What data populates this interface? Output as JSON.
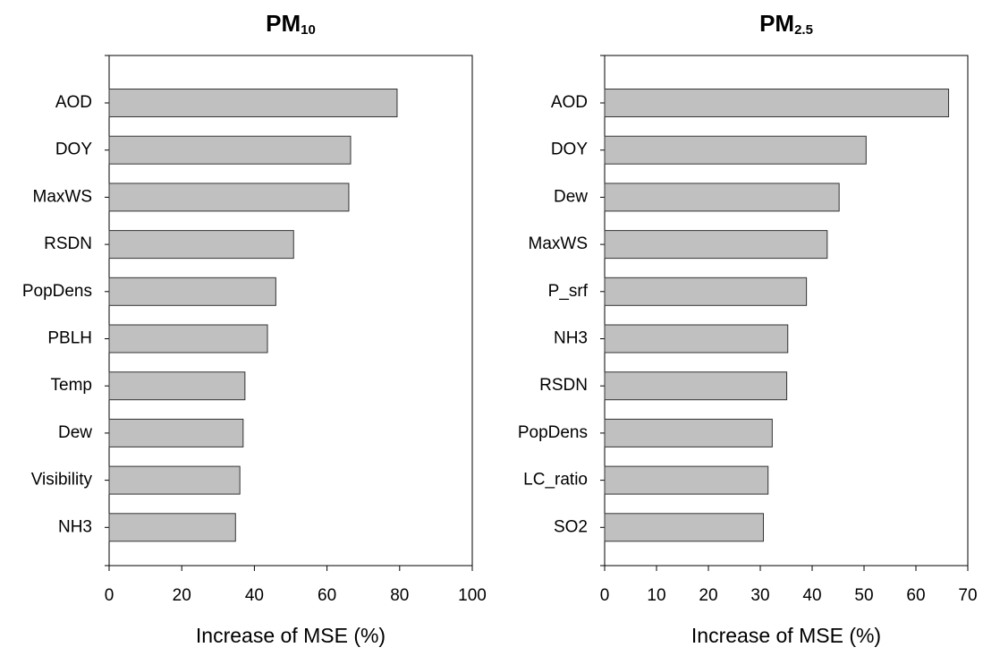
{
  "chart_data": [
    {
      "type": "bar",
      "orientation": "horizontal",
      "title": "PM",
      "title_subscript": "10",
      "categories": [
        "AOD",
        "DOY",
        "MaxWS",
        "RSDN",
        "PopDens",
        "PBLH",
        "Temp",
        "Dew",
        "Visibility",
        "NH3"
      ],
      "values": [
        79.3,
        66.5,
        66,
        50.8,
        45.9,
        43.6,
        37.4,
        36.9,
        36,
        34.8
      ],
      "color": "#c0c0c0",
      "x_label": "Increase of MSE (%)",
      "xlim": [
        0,
        100
      ],
      "xticks": [
        0,
        20,
        40,
        60,
        80,
        100
      ]
    },
    {
      "type": "bar",
      "orientation": "horizontal",
      "title": "PM",
      "title_subscript": "2.5",
      "categories": [
        "AOD",
        "DOY",
        "Dew",
        "MaxWS",
        "P_srf",
        "NH3",
        "RSDN",
        "PopDens",
        "LC_ratio",
        "SO2"
      ],
      "values": [
        66.3,
        50.4,
        45.2,
        42.9,
        38.9,
        35.3,
        35.1,
        32.3,
        31.5,
        30.6
      ],
      "color": "#c0c0c0",
      "x_label": "Increase of MSE (%)",
      "xlim": [
        0,
        70
      ],
      "xticks": [
        0,
        10,
        20,
        30,
        40,
        50,
        60,
        70
      ]
    }
  ]
}
